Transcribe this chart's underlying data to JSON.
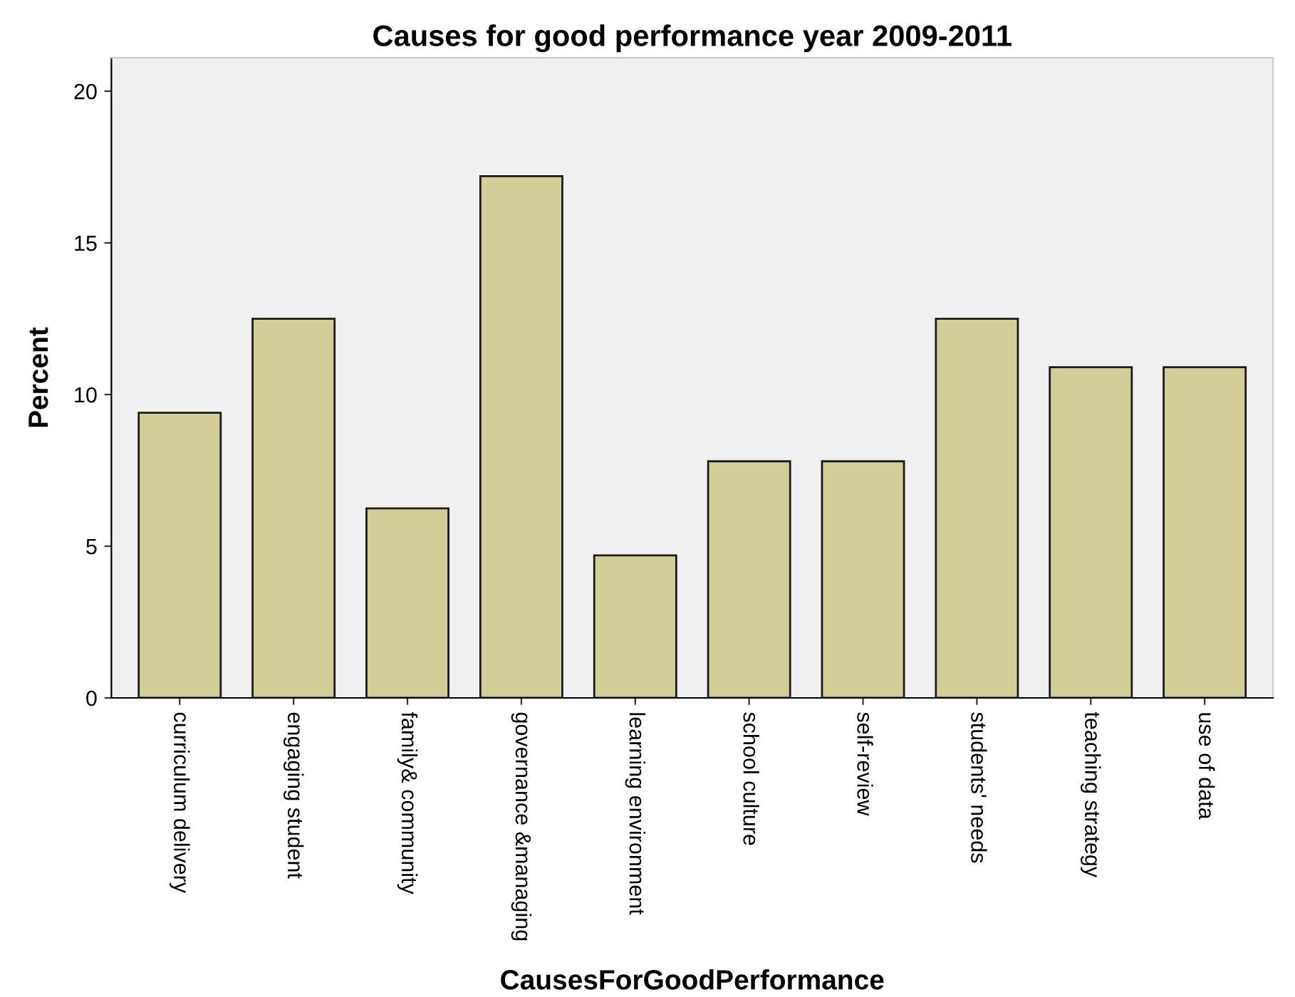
{
  "chart_data": {
    "type": "bar",
    "title": "Causes for good performance year 2009-2011",
    "xlabel": "CausesForGoodPerformance",
    "ylabel": "Percent",
    "categories": [
      "curriculum delivery",
      "engaging student",
      "family& community",
      "governance &managing",
      "learning environment",
      "school culture",
      "self-review",
      "students' needs",
      "teaching strategy",
      "use of data"
    ],
    "values": [
      9.4,
      12.5,
      6.25,
      17.2,
      4.7,
      7.8,
      7.8,
      12.5,
      10.9,
      10.9
    ],
    "color": "#d3ce98",
    "ylim": [
      0,
      21.1
    ],
    "yticks": [
      0,
      5,
      10,
      15,
      20
    ],
    "grid": false,
    "legend": false
  }
}
